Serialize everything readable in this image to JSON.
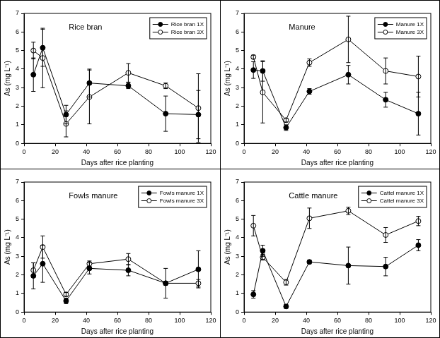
{
  "chart_data": [
    {
      "type": "line",
      "title": "Rice bran",
      "x_label": "Days after rice planting",
      "y_label": "As (mg L⁻¹)",
      "x": [
        6,
        12,
        27,
        42,
        67,
        91,
        112
      ],
      "series": [
        {
          "name": "Rice bran 1X",
          "color": "#000000",
          "marker": "circle",
          "values": [
            3.7,
            5.15,
            1.55,
            3.25,
            3.1,
            1.6,
            1.55
          ],
          "errors": [
            0.9,
            1.0,
            0.5,
            0.75,
            0.15,
            0.95,
            1.3
          ]
        },
        {
          "name": "Rice bran 3X",
          "color": "#000000",
          "marker": "open_circle",
          "values": [
            5.0,
            4.6,
            1.05,
            2.5,
            3.8,
            3.1,
            1.9
          ],
          "errors": [
            0.45,
            1.6,
            0.7,
            1.45,
            0.5,
            0.15,
            1.85
          ]
        }
      ],
      "xlim": [
        0,
        120
      ],
      "xticks": [
        0,
        20,
        40,
        60,
        80,
        100,
        120
      ],
      "ylim": [
        0,
        7
      ],
      "yticks": [
        0,
        1,
        2,
        3,
        4,
        5,
        6,
        7
      ],
      "legend": "upper right",
      "grid": false
    },
    {
      "type": "line",
      "title": "Manure",
      "x_label": "Days after rice planting",
      "y_label": "As (mg L⁻¹)",
      "x": [
        6,
        12,
        27,
        42,
        67,
        91,
        112
      ],
      "series": [
        {
          "name": "Manure 1X",
          "color": "#000000",
          "marker": "circle",
          "values": [
            3.95,
            3.9,
            0.85,
            2.8,
            3.7,
            2.35,
            1.6
          ],
          "errors": [
            0.45,
            0.55,
            0.15,
            0.15,
            0.5,
            0.4,
            1.15
          ]
        },
        {
          "name": "Manure 3X",
          "color": "#000000",
          "marker": "open_circle",
          "values": [
            4.65,
            2.75,
            1.25,
            4.35,
            5.6,
            3.9,
            3.6
          ],
          "errors": [
            0.1,
            1.65,
            0.1,
            0.2,
            1.25,
            0.7,
            1.1
          ]
        }
      ],
      "xlim": [
        0,
        120
      ],
      "xticks": [
        0,
        20,
        40,
        60,
        80,
        100,
        120
      ],
      "ylim": [
        0,
        7
      ],
      "yticks": [
        0,
        1,
        2,
        3,
        4,
        5,
        6,
        7
      ],
      "legend": "upper right",
      "grid": false
    },
    {
      "type": "line",
      "title": "Fowls manure",
      "x_label": "Days after rice planting",
      "y_label": "As (mg L⁻¹)",
      "x": [
        6,
        12,
        27,
        42,
        67,
        91,
        112
      ],
      "series": [
        {
          "name": "Fowls manure 1X",
          "color": "#000000",
          "marker": "circle",
          "values": [
            1.95,
            2.6,
            0.6,
            2.35,
            2.25,
            1.55,
            2.3
          ],
          "errors": [
            0.7,
            1.0,
            0.15,
            0.3,
            0.3,
            0.8,
            1.0
          ]
        },
        {
          "name": "Fowls manure 3X",
          "color": "#000000",
          "marker": "open_circle",
          "values": [
            2.25,
            3.5,
            0.95,
            2.6,
            2.85,
            1.55,
            1.55
          ],
          "errors": [
            0.4,
            0.6,
            0.1,
            0.15,
            0.3,
            0.1,
            0.2
          ]
        }
      ],
      "xlim": [
        0,
        120
      ],
      "xticks": [
        0,
        20,
        40,
        60,
        80,
        100,
        120
      ],
      "ylim": [
        0,
        7
      ],
      "yticks": [
        0,
        1,
        2,
        3,
        4,
        5,
        6,
        7
      ],
      "legend": "upper right",
      "grid": false
    },
    {
      "type": "line",
      "title": "Cattle manure",
      "x_label": "Days after rice planting",
      "y_label": "As (mg L⁻¹)",
      "x": [
        6,
        12,
        27,
        42,
        67,
        91,
        112
      ],
      "series": [
        {
          "name": "Cattel manure 1X",
          "color": "#000000",
          "marker": "circle",
          "values": [
            0.95,
            3.3,
            0.3,
            2.7,
            2.5,
            2.45,
            3.6
          ],
          "errors": [
            0.2,
            0.3,
            0.1,
            0.1,
            1.0,
            0.5,
            0.3
          ]
        },
        {
          "name": "Cattel manure 3X",
          "color": "#000000",
          "marker": "open_circle",
          "values": [
            4.65,
            2.95,
            1.6,
            5.05,
            5.45,
            4.15,
            4.9
          ],
          "errors": [
            0.55,
            0.15,
            0.15,
            0.55,
            0.2,
            0.4,
            0.25
          ]
        }
      ],
      "xlim": [
        0,
        120
      ],
      "xticks": [
        0,
        20,
        40,
        60,
        80,
        100,
        120
      ],
      "ylim": [
        0,
        7
      ],
      "yticks": [
        0,
        1,
        2,
        3,
        4,
        5,
        6,
        7
      ],
      "legend": "upper right",
      "grid": false
    }
  ]
}
